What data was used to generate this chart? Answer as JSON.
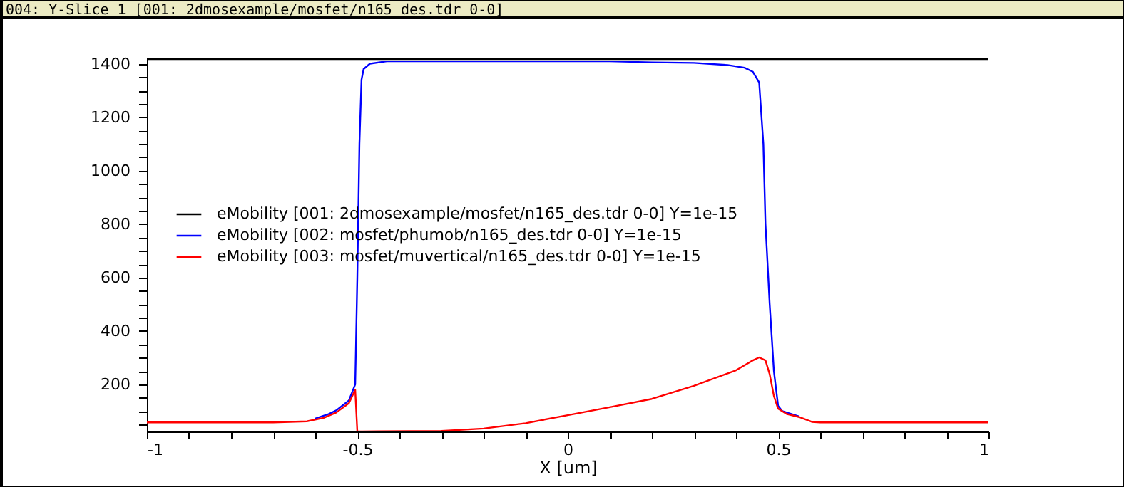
{
  "chart_data": {
    "type": "line",
    "title": "004: Y-Slice 1 [001: 2dmosexample/mosfet/n165_des.tdr 0-0]",
    "xlabel": "X [um]",
    "xlim": [
      -1,
      1
    ],
    "ylim": [
      24,
      1420
    ],
    "xticks": [
      -1,
      {
        "value": -0.9,
        "label": null
      },
      {
        "value": -0.8,
        "label": null
      },
      {
        "value": -0.7,
        "label": null
      },
      {
        "value": -0.6,
        "label": null
      },
      -0.5,
      {
        "value": -0.4,
        "label": null
      },
      {
        "value": -0.3,
        "label": null
      },
      {
        "value": -0.2,
        "label": null
      },
      {
        "value": -0.1,
        "label": null
      },
      0,
      {
        "value": 0.1,
        "label": null
      },
      {
        "value": 0.2,
        "label": null
      },
      {
        "value": 0.3,
        "label": null
      },
      {
        "value": 0.4,
        "label": null
      },
      0.5,
      {
        "value": 0.6,
        "label": null
      },
      {
        "value": 0.7,
        "label": null
      },
      {
        "value": 0.8,
        "label": null
      },
      {
        "value": 0.9,
        "label": null
      },
      1
    ],
    "yticks": [
      {
        "value": 50,
        "label": null
      },
      {
        "value": 100,
        "label": null
      },
      {
        "value": 150,
        "label": null
      },
      200,
      {
        "value": 250,
        "label": null
      },
      {
        "value": 300,
        "label": null
      },
      {
        "value": 350,
        "label": null
      },
      400,
      {
        "value": 450,
        "label": null
      },
      {
        "value": 500,
        "label": null
      },
      {
        "value": 550,
        "label": null
      },
      600,
      {
        "value": 650,
        "label": null
      },
      {
        "value": 700,
        "label": null
      },
      {
        "value": 750,
        "label": null
      },
      800,
      {
        "value": 850,
        "label": null
      },
      {
        "value": 900,
        "label": null
      },
      {
        "value": 950,
        "label": null
      },
      1000,
      {
        "value": 1050,
        "label": null
      },
      {
        "value": 1100,
        "label": null
      },
      {
        "value": 1150,
        "label": null
      },
      1200,
      {
        "value": 1250,
        "label": null
      },
      {
        "value": 1300,
        "label": null
      },
      {
        "value": 1350,
        "label": null
      },
      1400
    ],
    "grid": false,
    "legend": "left",
    "marker": "none",
    "line_style": "solid",
    "series": [
      {
        "name": "eMobility [001: 2dmosexample/mosfet/n165_des.tdr 0-0] Y=1e-15",
        "color": "#000000",
        "x": [
          -1,
          1
        ],
        "values": [
          1417,
          1417
        ]
      },
      {
        "name": "eMobility [002: mosfet/phumob/n165_des.tdr 0-0] Y=1e-15",
        "color": "#0000ff",
        "x": [
          -0.6,
          -0.57,
          -0.55,
          -0.52,
          -0.505,
          -0.5,
          -0.495,
          -0.49,
          -0.485,
          -0.47,
          -0.43,
          0.1,
          0.2,
          0.3,
          0.38,
          0.42,
          0.44,
          0.455,
          0.465,
          0.47,
          0.48,
          0.49,
          0.5,
          0.51,
          0.55
        ],
        "values": [
          72,
          88,
          103,
          140,
          200,
          600,
          1100,
          1340,
          1380,
          1400,
          1409,
          1409,
          1405,
          1403,
          1395,
          1385,
          1370,
          1330,
          1100,
          800,
          500,
          250,
          120,
          100,
          80
        ]
      },
      {
        "name": "eMobility [003: mosfet/muvertical/n165_des.tdr 0-0] Y=1e-15",
        "color": "#ff0000",
        "x": [
          -1,
          -0.7,
          -0.62,
          -0.58,
          -0.55,
          -0.52,
          -0.505,
          -0.5,
          -0.45,
          -0.3,
          -0.2,
          -0.1,
          0,
          0.1,
          0.2,
          0.3,
          0.4,
          0.44,
          0.455,
          0.47,
          0.48,
          0.49,
          0.5,
          0.52,
          0.55,
          0.58,
          0.6,
          1
        ],
        "values": [
          58,
          58,
          62,
          75,
          95,
          130,
          180,
          24,
          25,
          26,
          35,
          55,
          85,
          115,
          146,
          195,
          253,
          290,
          301,
          290,
          238,
          157,
          109,
          90,
          78,
          60,
          58,
          58
        ]
      }
    ]
  }
}
